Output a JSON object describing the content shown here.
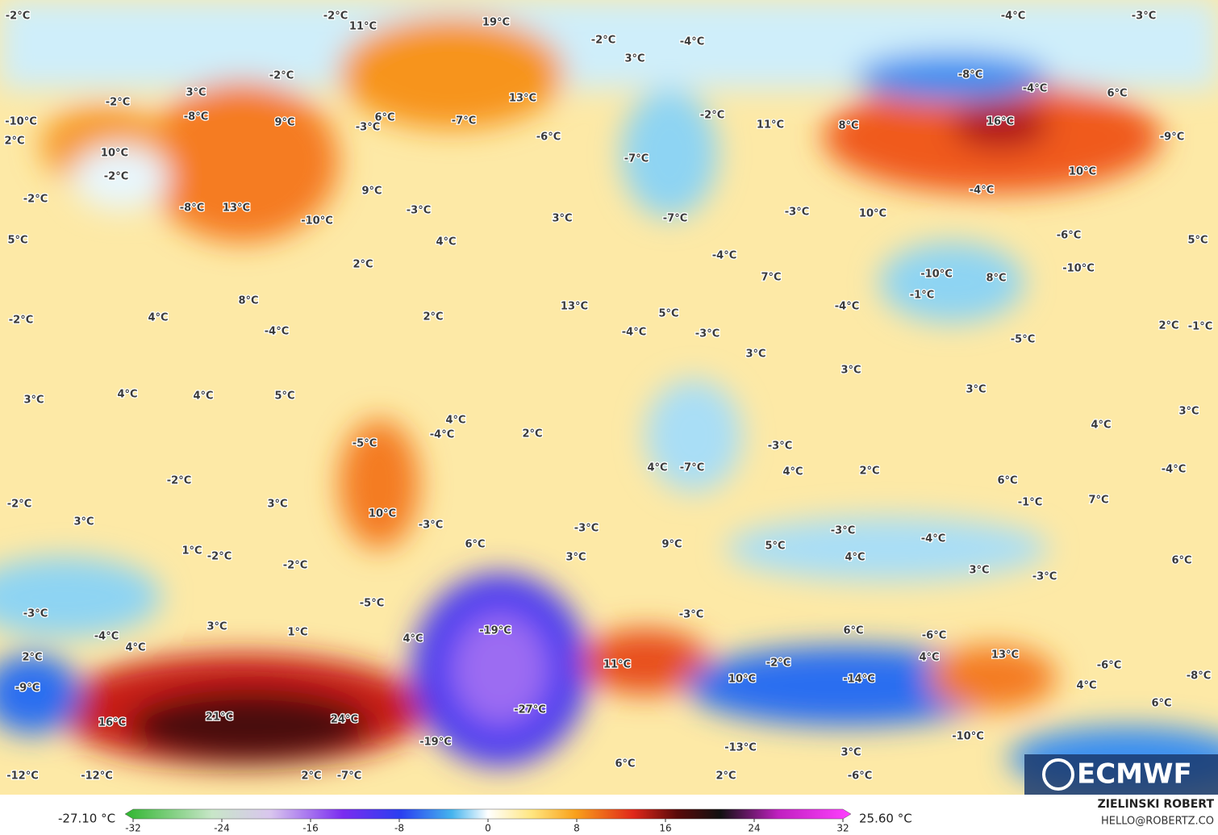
{
  "map": {
    "labels": [
      "-2°C",
      "-2°C",
      "11°C",
      "19°C",
      "-2°C",
      "-4°C",
      "3°C",
      "-4°C",
      "-3°C",
      "-8°C",
      "-4°C",
      "6°C",
      "13°C",
      "-2°C",
      "3°C",
      "-8°C",
      "9°C",
      "-2°C",
      "6°C",
      "-3°C",
      "-7°C",
      "-6°C",
      "-2°C",
      "11°C",
      "8°C",
      "16°C",
      "-9°C",
      "-10°C",
      "2°C",
      "10°C",
      "-2°C",
      "-7°C",
      "10°C",
      "-2°C",
      "-8°C",
      "13°C",
      "9°C",
      "-4°C",
      "-10°C",
      "-3°C",
      "3°C",
      "-7°C",
      "-3°C",
      "10°C",
      "5°C",
      "4°C",
      "-6°C",
      "5°C",
      "-4°C",
      "2°C",
      "-10°C",
      "-10°C",
      "7°C",
      "8°C",
      "8°C",
      "13°C",
      "-4°C",
      "-1°C",
      "-2°C",
      "4°C",
      "2°C",
      "5°C",
      "-4°C",
      "-4°C",
      "-3°C",
      "2°C",
      "-1°C",
      "-5°C",
      "3°C",
      "3°C",
      "3°C",
      "4°C",
      "4°C",
      "5°C",
      "3°C",
      "3°C",
      "4°C",
      "-4°C",
      "2°C",
      "-5°C",
      "4°C",
      "-3°C",
      "4°C",
      "-7°C",
      "4°C",
      "2°C",
      "-4°C",
      "-2°C",
      "6°C",
      "-2°C",
      "3°C",
      "-1°C",
      "7°C",
      "10°C",
      "3°C",
      "-3°C",
      "-3°C",
      "-3°C",
      "-4°C",
      "6°C",
      "9°C",
      "5°C",
      "1°C",
      "-2°C",
      "3°C",
      "4°C",
      "6°C",
      "-2°C",
      "3°C",
      "-3°C",
      "-5°C",
      "-3°C",
      "-3°C",
      "3°C",
      "-19°C",
      "6°C",
      "-4°C",
      "1°C",
      "-6°C",
      "4°C",
      "4°C",
      "2°C",
      "4°C",
      "13°C",
      "11°C",
      "-2°C",
      "-6°C",
      "-8°C",
      "-14°C",
      "10°C",
      "-9°C",
      "4°C",
      "-27°C",
      "6°C",
      "16°C",
      "21°C",
      "24°C",
      "-10°C",
      "-19°C",
      "-13°C",
      "3°C",
      "6°C",
      "-12°C",
      "-12°C",
      "2°C",
      "-7°C",
      "2°C",
      "-6°C"
    ],
    "logo": "ECMWF"
  },
  "colorbar": {
    "min_label": "-27.10 °C",
    "max_label": "25.60 °C",
    "range": [
      -32,
      32
    ],
    "ticks": [
      -32,
      -24,
      -16,
      -8,
      0,
      8,
      16,
      24,
      32
    ]
  },
  "credit": {
    "author": "ZIELINSKI ROBERT",
    "contact": "HELLO@ROBERTZ.CO"
  }
}
